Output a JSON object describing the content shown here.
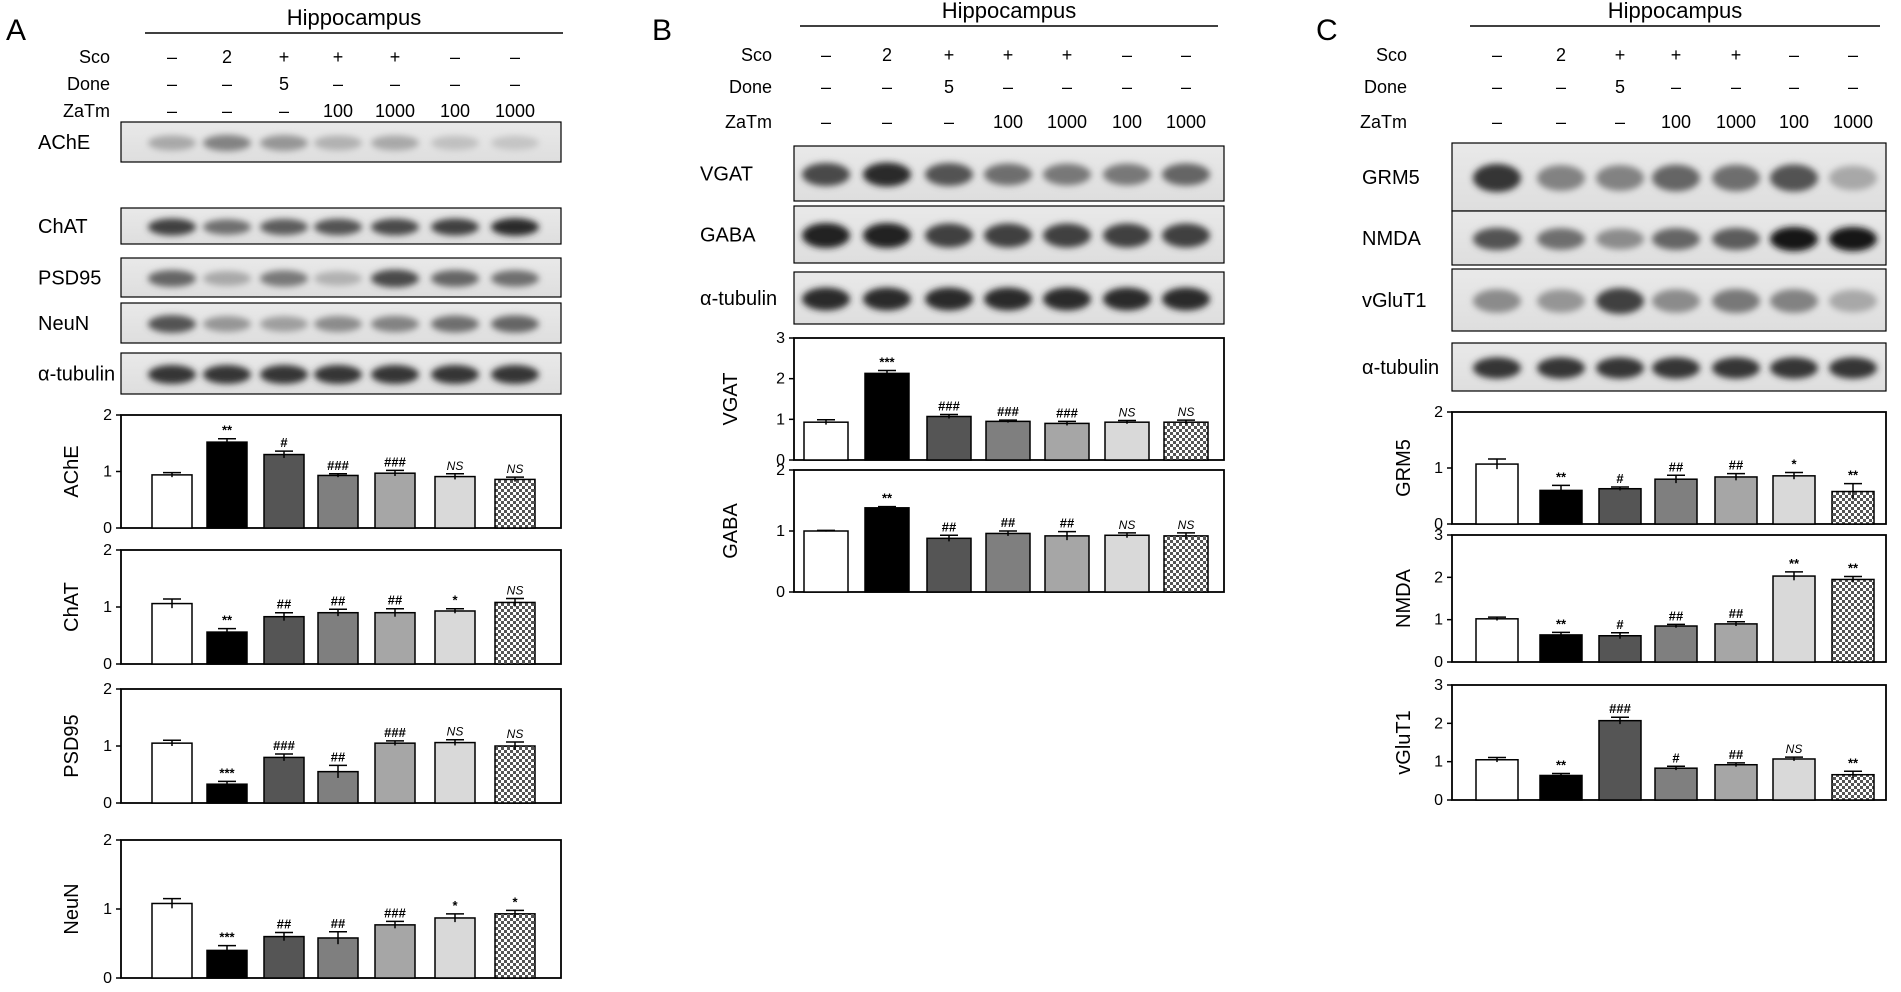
{
  "chart_data": [
    {
      "panel": "A",
      "type": "bar",
      "header": "Hippocampus",
      "treatments": [
        {
          "label": "Sco",
          "values": [
            "–",
            "2",
            "+",
            "+",
            "+",
            "–",
            "–"
          ]
        },
        {
          "label": "Done",
          "values": [
            "–",
            "–",
            "5",
            "–",
            "–",
            "–",
            "–"
          ]
        },
        {
          "label": "ZaTm",
          "values": [
            "–",
            "–",
            "–",
            "100",
            "1000",
            "100",
            "1000"
          ]
        }
      ],
      "blots": [
        "AChE",
        "ChAT",
        "PSD95",
        "NeuN",
        "α-tubulin"
      ],
      "colors": [
        "#ffffff",
        "#000000",
        "#555555",
        "#7f7f7f",
        "#a6a6a6",
        "#d9d9d9",
        "checker"
      ],
      "plots": [
        {
          "ylabel": "AChE",
          "ylim": [
            0,
            2
          ],
          "yticks": [
            "0",
            "1",
            "2"
          ],
          "values": [
            0.94,
            1.52,
            1.3,
            0.93,
            0.97,
            0.91,
            0.86
          ],
          "errors": [
            0.04,
            0.06,
            0.06,
            0.03,
            0.05,
            0.05,
            0.04
          ],
          "labels": [
            "",
            "**",
            "#",
            "###",
            "###",
            "NS",
            "NS"
          ]
        },
        {
          "ylabel": "ChAT",
          "ylim": [
            0,
            2
          ],
          "yticks": [
            "0",
            "1",
            "2"
          ],
          "values": [
            1.06,
            0.56,
            0.83,
            0.9,
            0.9,
            0.93,
            1.08
          ],
          "errors": [
            0.08,
            0.06,
            0.07,
            0.06,
            0.07,
            0.04,
            0.07
          ],
          "labels": [
            "",
            "**",
            "##",
            "##",
            "##",
            "*",
            "NS"
          ]
        },
        {
          "ylabel": "PSD95",
          "ylim": [
            0,
            2
          ],
          "yticks": [
            "0",
            "1",
            "2"
          ],
          "values": [
            1.05,
            0.33,
            0.8,
            0.55,
            1.05,
            1.06,
            1.0
          ],
          "errors": [
            0.05,
            0.05,
            0.06,
            0.11,
            0.04,
            0.05,
            0.07
          ],
          "labels": [
            "",
            "***",
            "###",
            "##",
            "###",
            "NS",
            "NS"
          ]
        },
        {
          "ylabel": "NeuN",
          "ylim": [
            0,
            2
          ],
          "yticks": [
            "0",
            "1",
            "2"
          ],
          "values": [
            1.08,
            0.4,
            0.6,
            0.58,
            0.77,
            0.87,
            0.93
          ],
          "errors": [
            0.07,
            0.07,
            0.06,
            0.09,
            0.05,
            0.06,
            0.05
          ],
          "labels": [
            "",
            "***",
            "##",
            "##",
            "###",
            "*",
            "*"
          ]
        }
      ]
    },
    {
      "panel": "B",
      "type": "bar",
      "header": "Hippocampus",
      "treatments": [
        {
          "label": "Sco",
          "values": [
            "–",
            "2",
            "+",
            "+",
            "+",
            "–",
            "–"
          ]
        },
        {
          "label": "Done",
          "values": [
            "–",
            "–",
            "5",
            "–",
            "–",
            "–",
            "–"
          ]
        },
        {
          "label": "ZaTm",
          "values": [
            "–",
            "–",
            "–",
            "100",
            "1000",
            "100",
            "1000"
          ]
        }
      ],
      "blots": [
        "VGAT",
        "GABA",
        "α-tubulin"
      ],
      "colors": [
        "#ffffff",
        "#000000",
        "#555555",
        "#7f7f7f",
        "#a6a6a6",
        "#d9d9d9",
        "checker"
      ],
      "plots": [
        {
          "ylabel": "VGAT",
          "ylim": [
            0,
            3
          ],
          "yticks": [
            "0",
            "1",
            "2",
            "3"
          ],
          "values": [
            0.93,
            2.13,
            1.07,
            0.95,
            0.9,
            0.93,
            0.93
          ],
          "errors": [
            0.06,
            0.07,
            0.05,
            0.03,
            0.05,
            0.04,
            0.05
          ],
          "labels": [
            "",
            "***",
            "###",
            "###",
            "###",
            "NS",
            "NS"
          ]
        },
        {
          "ylabel": "GABA",
          "ylim": [
            0,
            2
          ],
          "yticks": [
            "0",
            "1",
            "2"
          ],
          "values": [
            1.0,
            1.38,
            0.88,
            0.96,
            0.92,
            0.93,
            0.92
          ],
          "errors": [
            0.01,
            0.02,
            0.05,
            0.04,
            0.07,
            0.04,
            0.05
          ],
          "labels": [
            "",
            "**",
            "##",
            "##",
            "##",
            "NS",
            "NS"
          ]
        }
      ]
    },
    {
      "panel": "C",
      "type": "bar",
      "header": "Hippocampus",
      "treatments": [
        {
          "label": "Sco",
          "values": [
            "–",
            "2",
            "+",
            "+",
            "+",
            "–",
            "–"
          ]
        },
        {
          "label": "Done",
          "values": [
            "–",
            "–",
            "5",
            "–",
            "–",
            "–",
            "–"
          ]
        },
        {
          "label": "ZaTm",
          "values": [
            "–",
            "–",
            "–",
            "100",
            "1000",
            "100",
            "1000"
          ]
        }
      ],
      "blots": [
        "GRM5",
        "NMDA",
        "vGluT1",
        "α-tubulin"
      ],
      "colors": [
        "#ffffff",
        "#000000",
        "#555555",
        "#7f7f7f",
        "#a6a6a6",
        "#d9d9d9",
        "checker"
      ],
      "plots": [
        {
          "ylabel": "GRM5",
          "ylim": [
            0,
            2
          ],
          "yticks": [
            "0",
            "1",
            "2"
          ],
          "values": [
            1.07,
            0.6,
            0.63,
            0.8,
            0.84,
            0.86,
            0.58
          ],
          "errors": [
            0.09,
            0.09,
            0.03,
            0.07,
            0.06,
            0.06,
            0.14
          ],
          "labels": [
            "",
            "**",
            "#",
            "##",
            "##",
            "*",
            "**"
          ]
        },
        {
          "ylabel": "NMDA",
          "ylim": [
            0,
            3
          ],
          "yticks": [
            "0",
            "1",
            "2",
            "3"
          ],
          "values": [
            1.02,
            0.64,
            0.62,
            0.85,
            0.9,
            2.03,
            1.95
          ],
          "errors": [
            0.04,
            0.06,
            0.07,
            0.04,
            0.05,
            0.1,
            0.07
          ],
          "labels": [
            "",
            "**",
            "#",
            "##",
            "##",
            "**",
            "**"
          ]
        },
        {
          "ylabel": "vGluT1",
          "ylim": [
            0,
            3
          ],
          "yticks": [
            "0",
            "1",
            "2",
            "3"
          ],
          "values": [
            1.05,
            0.64,
            2.07,
            0.83,
            0.92,
            1.07,
            0.66
          ],
          "errors": [
            0.06,
            0.05,
            0.09,
            0.05,
            0.05,
            0.05,
            0.09
          ],
          "labels": [
            "",
            "**",
            "###",
            "#",
            "##",
            "NS",
            "**"
          ]
        }
      ]
    }
  ]
}
